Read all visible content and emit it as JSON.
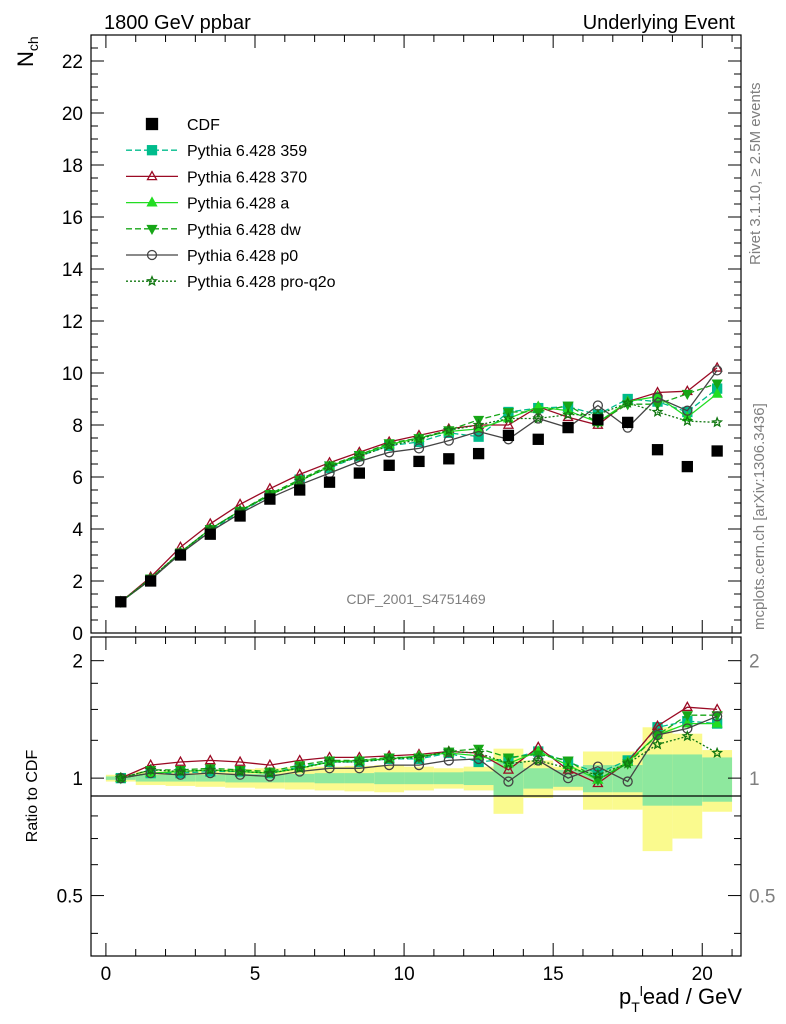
{
  "header": {
    "left_title": "1800 GeV ppbar",
    "right_title": "Underlying Event"
  },
  "side_labels": {
    "rivet": "Rivet 3.1.10, ≥ 2.5M events",
    "mcplots": "mcplots.cern.ch [arXiv:1306.3436]"
  },
  "chart_data": [
    {
      "type": "scatter",
      "panel": "main",
      "analysis_label": "CDF_2001_S4751469",
      "ylabel_main": "N",
      "ylabel_sub": "ch",
      "xlabel_parts": [
        "p",
        "T",
        "l",
        "ead / GeV"
      ],
      "xlim": [
        -0.5,
        21.3
      ],
      "ylim": [
        0,
        23
      ],
      "x_ticks": [
        0,
        5,
        10,
        15,
        20
      ],
      "y_ticks": [
        0,
        2,
        4,
        6,
        8,
        10,
        12,
        14,
        16,
        18,
        20,
        22
      ],
      "legend_position": "top-left",
      "x": [
        0.5,
        1.5,
        2.5,
        3.5,
        4.5,
        5.5,
        6.5,
        7.5,
        8.5,
        9.5,
        10.5,
        11.5,
        12.5,
        13.5,
        14.5,
        15.5,
        16.5,
        17.5,
        18.5,
        19.5,
        20.5
      ],
      "data": {
        "name": "CDF",
        "color": "#000000",
        "values": [
          1.2,
          2.0,
          3.0,
          3.8,
          4.5,
          5.15,
          5.5,
          5.8,
          6.15,
          6.45,
          6.6,
          6.7,
          6.9,
          7.6,
          7.45,
          7.9,
          8.2,
          8.1,
          7.05,
          6.4,
          7.0
        ]
      },
      "series": [
        {
          "name": "Pythia 6.428 359",
          "color": "#00bc8c",
          "dash": "6,3",
          "marker": "square",
          "values": [
            1.2,
            2.05,
            3.05,
            3.95,
            4.65,
            5.3,
            5.9,
            6.35,
            6.8,
            7.2,
            7.35,
            7.7,
            7.55,
            8.5,
            8.65,
            8.7,
            8.4,
            9.0,
            8.9,
            8.5,
            9.4
          ]
        },
        {
          "name": "Pythia 6.428 370",
          "color": "#9b0a24",
          "dash": "",
          "marker": "triangle-open",
          "values": [
            1.2,
            2.15,
            3.3,
            4.2,
            4.95,
            5.55,
            6.1,
            6.55,
            6.95,
            7.35,
            7.6,
            7.85,
            8.0,
            8.0,
            8.7,
            8.3,
            8.0,
            8.9,
            9.25,
            9.3,
            10.2
          ]
        },
        {
          "name": "Pythia 6.428 a",
          "color": "#22dd22",
          "dash": "",
          "marker": "triangle",
          "values": [
            1.2,
            2.05,
            3.1,
            4.0,
            4.7,
            5.3,
            5.85,
            6.4,
            6.85,
            7.25,
            7.5,
            7.75,
            7.85,
            8.25,
            8.7,
            8.55,
            8.1,
            8.9,
            9.1,
            8.3,
            9.2
          ]
        },
        {
          "name": "Pythia 6.428 dw",
          "color": "#17a617",
          "dash": "6,3",
          "marker": "triangle-down",
          "values": [
            1.2,
            2.1,
            3.1,
            4.0,
            4.7,
            5.35,
            5.9,
            6.45,
            6.85,
            7.3,
            7.5,
            7.8,
            8.2,
            8.5,
            8.5,
            8.75,
            8.1,
            8.8,
            8.8,
            9.2,
            9.6
          ]
        },
        {
          "name": "Pythia 6.428 p0",
          "color": "#444444",
          "dash": "",
          "marker": "circle-open",
          "values": [
            1.2,
            2.05,
            3.05,
            3.9,
            4.6,
            5.2,
            5.7,
            6.15,
            6.6,
            6.95,
            7.1,
            7.4,
            7.75,
            7.45,
            8.25,
            7.9,
            8.75,
            7.9,
            9.05,
            8.55,
            10.1
          ]
        },
        {
          "name": "Pythia 6.428 pro-q2o",
          "color": "#117711",
          "dash": "2,2",
          "marker": "star",
          "values": [
            1.2,
            2.1,
            3.1,
            4.0,
            4.7,
            5.3,
            5.85,
            6.4,
            6.8,
            7.2,
            7.45,
            7.8,
            8.0,
            8.25,
            8.25,
            8.4,
            8.4,
            8.85,
            8.5,
            8.15,
            8.1
          ]
        }
      ]
    },
    {
      "type": "scatter",
      "panel": "ratio",
      "ylabel": "Ratio to CDF",
      "ylim": [
        0.35,
        2.3
      ],
      "y_ticks": [
        0.5,
        1,
        2
      ],
      "y_tick_labels": [
        "0.5",
        "1",
        "2"
      ],
      "x": [
        0.5,
        1.5,
        2.5,
        3.5,
        4.5,
        5.5,
        6.5,
        7.5,
        8.5,
        9.5,
        10.5,
        11.5,
        12.5,
        13.5,
        14.5,
        15.5,
        16.5,
        17.5,
        18.5,
        19.5,
        20.5
      ],
      "uncertainty_bands": {
        "inner_color": "#8ee89e",
        "outer_color": "#fafa8e",
        "stat_half_width": [
          0.01,
          0.02,
          0.02,
          0.02,
          0.025,
          0.025,
          0.025,
          0.03,
          0.03,
          0.035,
          0.035,
          0.035,
          0.04,
          0.1,
          0.06,
          0.05,
          0.08,
          0.08,
          0.15,
          0.15,
          0.13
        ],
        "total_half_width": [
          0.02,
          0.04,
          0.045,
          0.05,
          0.055,
          0.06,
          0.065,
          0.07,
          0.075,
          0.08,
          0.07,
          0.06,
          0.07,
          0.19,
          0.11,
          0.07,
          0.17,
          0.17,
          0.35,
          0.3,
          0.18
        ]
      },
      "series": [
        {
          "name": "Pythia 6.428 359",
          "values": [
            1.0,
            1.03,
            1.03,
            1.04,
            1.04,
            1.03,
            1.07,
            1.1,
            1.1,
            1.12,
            1.12,
            1.16,
            1.1,
            1.12,
            1.17,
            1.1,
            1.03,
            1.11,
            1.35,
            1.4,
            1.38
          ]
        },
        {
          "name": "Pythia 6.428 370",
          "values": [
            1.0,
            1.08,
            1.1,
            1.11,
            1.1,
            1.08,
            1.11,
            1.13,
            1.13,
            1.14,
            1.15,
            1.17,
            1.16,
            1.05,
            1.2,
            1.05,
            0.97,
            1.1,
            1.36,
            1.52,
            1.5
          ]
        },
        {
          "name": "Pythia 6.428 a",
          "values": [
            1.0,
            1.03,
            1.04,
            1.05,
            1.04,
            1.03,
            1.06,
            1.1,
            1.11,
            1.12,
            1.14,
            1.16,
            1.14,
            1.09,
            1.17,
            1.08,
            0.99,
            1.1,
            1.29,
            1.38,
            1.38
          ]
        },
        {
          "name": "Pythia 6.428 dw",
          "values": [
            1.0,
            1.05,
            1.05,
            1.06,
            1.05,
            1.04,
            1.08,
            1.11,
            1.11,
            1.13,
            1.13,
            1.17,
            1.19,
            1.13,
            1.15,
            1.11,
            0.99,
            1.09,
            1.29,
            1.45,
            1.45
          ]
        },
        {
          "name": "Pythia 6.428 p0",
          "values": [
            1.0,
            1.03,
            1.02,
            1.03,
            1.02,
            1.01,
            1.04,
            1.06,
            1.06,
            1.08,
            1.08,
            1.11,
            1.12,
            0.98,
            1.11,
            1.0,
            1.07,
            0.98,
            1.29,
            1.34,
            1.44
          ]
        },
        {
          "name": "Pythia 6.428 pro-q2o",
          "values": [
            1.0,
            1.05,
            1.04,
            1.05,
            1.04,
            1.03,
            1.06,
            1.1,
            1.1,
            1.12,
            1.13,
            1.17,
            1.16,
            1.09,
            1.11,
            1.06,
            1.02,
            1.09,
            1.22,
            1.28,
            1.16
          ]
        }
      ]
    }
  ]
}
